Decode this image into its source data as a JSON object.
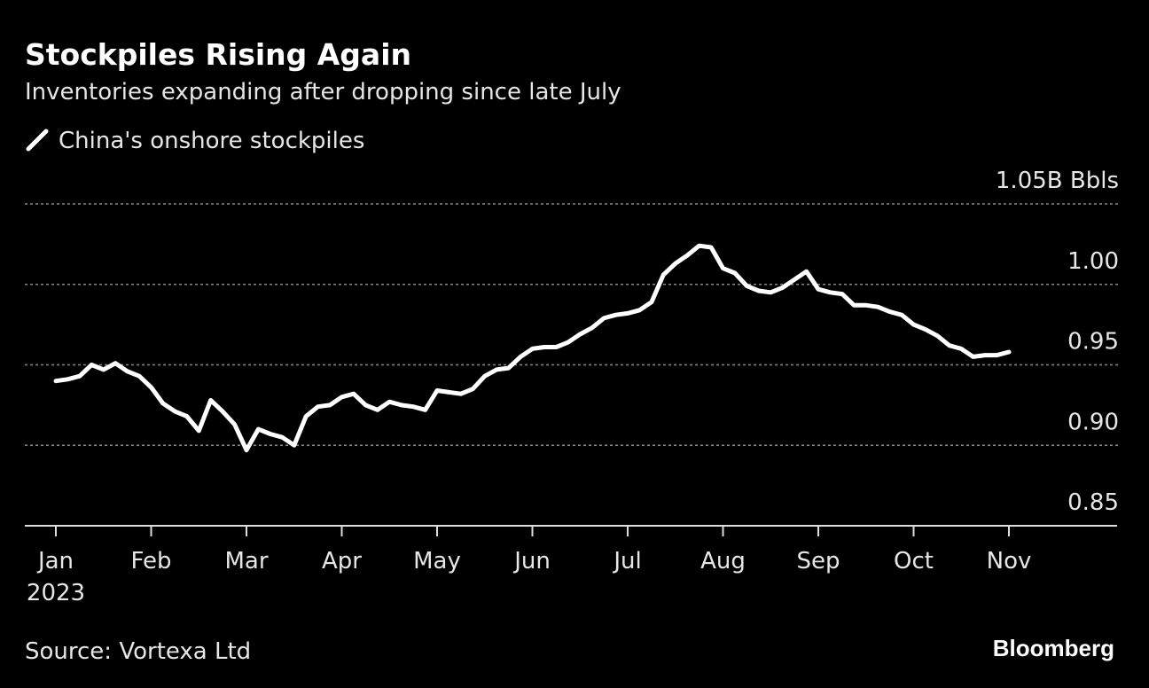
{
  "chart_data": {
    "type": "line",
    "title": "Stockpiles Rising Again",
    "subtitle": "Inventories expanding after dropping since late July",
    "source": "Source: Vortexa Ltd",
    "brand": "Bloomberg",
    "year_label": "2023",
    "grid": true,
    "categories": [
      "Jan",
      null,
      null,
      null,
      null,
      null,
      null,
      null,
      "Feb",
      null,
      null,
      null,
      null,
      null,
      null,
      null,
      "Mar",
      null,
      null,
      null,
      null,
      null,
      null,
      null,
      "Apr",
      null,
      null,
      null,
      null,
      null,
      null,
      null,
      "May",
      null,
      null,
      null,
      null,
      null,
      null,
      null,
      "Jun",
      null,
      null,
      null,
      null,
      null,
      null,
      null,
      "Jul",
      null,
      null,
      null,
      null,
      null,
      null,
      null,
      "Aug",
      null,
      null,
      null,
      null,
      null,
      null,
      null,
      "Sep",
      null,
      null,
      null,
      null,
      null,
      null,
      null,
      "Oct",
      null,
      null,
      null,
      null,
      null,
      null,
      null,
      "Nov"
    ],
    "series": [
      {
        "name": "China's onshore stockpiles",
        "color": "#ffffff",
        "values": [
          0.94,
          0.941,
          0.943,
          0.95,
          0.947,
          0.951,
          0.946,
          0.943,
          0.936,
          0.926,
          0.921,
          0.918,
          0.909,
          0.928,
          0.921,
          0.913,
          0.897,
          0.91,
          0.907,
          0.905,
          0.9,
          0.918,
          0.924,
          0.925,
          0.93,
          0.932,
          0.925,
          0.922,
          0.927,
          0.925,
          0.924,
          0.922,
          0.934,
          0.933,
          0.932,
          0.935,
          0.943,
          0.947,
          0.948,
          0.955,
          0.96,
          0.961,
          0.961,
          0.964,
          0.969,
          0.973,
          0.979,
          0.981,
          0.982,
          0.984,
          0.989,
          1.006,
          1.013,
          1.018,
          1.024,
          1.023,
          1.01,
          1.007,
          0.999,
          0.996,
          0.995,
          0.998,
          1.003,
          1.008,
          0.997,
          0.995,
          0.994,
          0.987,
          0.987,
          0.986,
          0.983,
          0.981,
          0.975,
          0.972,
          0.968,
          0.962,
          0.96,
          0.955,
          0.956,
          0.956,
          0.958
        ]
      }
    ],
    "ylim": [
      0.85,
      1.05
    ],
    "yticks": [
      0.85,
      {
        "value": 0.9,
        "label": "0.90"
      },
      0.95,
      {
        "value": 1.0,
        "label": "1.00"
      },
      {
        "value": 1.05,
        "label": "1.05B Bbls"
      }
    ]
  }
}
